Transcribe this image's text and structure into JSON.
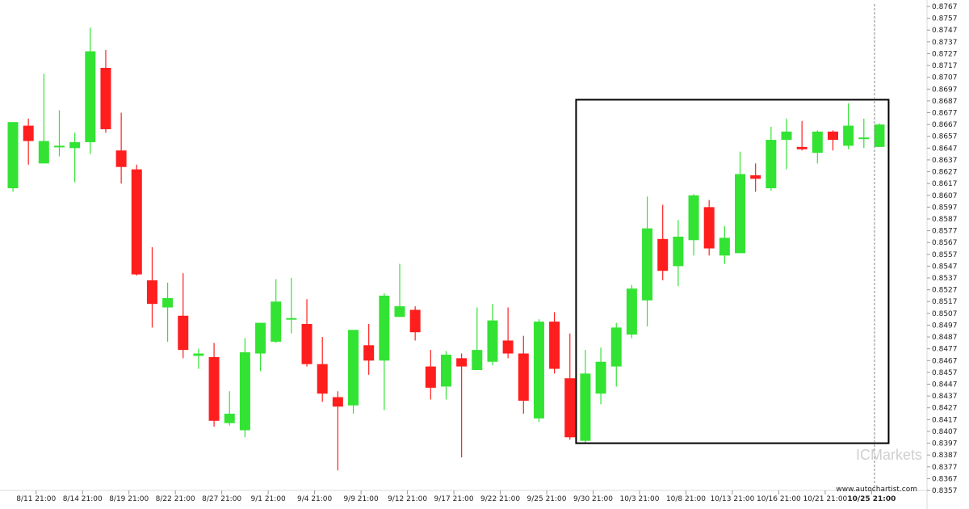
{
  "chart_data": {
    "type": "candlestick",
    "title": "",
    "xlabel": "",
    "ylabel": "",
    "ylim": [
      0.8357,
      0.8767
    ],
    "y_ticks": [
      "0.8767",
      "0.8757",
      "0.8747",
      "0.8737",
      "0.8727",
      "0.8717",
      "0.8707",
      "0.8697",
      "0.8687",
      "0.8677",
      "0.8667",
      "0.8657",
      "0.8647",
      "0.8637",
      "0.8627",
      "0.8617",
      "0.8607",
      "0.8597",
      "0.8587",
      "0.8577",
      "0.8567",
      "0.8557",
      "0.8547",
      "0.8537",
      "0.8527",
      "0.8517",
      "0.8507",
      "0.8497",
      "0.8487",
      "0.8477",
      "0.8467",
      "0.8457",
      "0.8447",
      "0.8437",
      "0.8427",
      "0.8417",
      "0.8407",
      "0.8397",
      "0.8387",
      "0.8377",
      "0.8367",
      "0.8357"
    ],
    "x_ticks": [
      {
        "label": "8/11 21:00",
        "index": 1.5
      },
      {
        "label": "8/14 21:00",
        "index": 4.5
      },
      {
        "label": "8/19 21:00",
        "index": 7.5
      },
      {
        "label": "8/22 21:00",
        "index": 10.5
      },
      {
        "label": "8/27 21:00",
        "index": 13.5
      },
      {
        "label": "9/1 21:00",
        "index": 16.5
      },
      {
        "label": "9/4 21:00",
        "index": 19.5
      },
      {
        "label": "9/9 21:00",
        "index": 22.5
      },
      {
        "label": "9/12 21:00",
        "index": 25.5
      },
      {
        "label": "9/17 21:00",
        "index": 28.5
      },
      {
        "label": "9/22 21:00",
        "index": 31.5
      },
      {
        "label": "9/25 21:00",
        "index": 34.5
      },
      {
        "label": "9/30 21:00",
        "index": 37.5
      },
      {
        "label": "10/3 21:00",
        "index": 40.5
      },
      {
        "label": "10/8 21:00",
        "index": 43.5
      },
      {
        "label": "10/13 21:00",
        "index": 46.5
      },
      {
        "label": "10/16 21:00",
        "index": 49.5
      },
      {
        "label": "10/21 21:00",
        "index": 52.5
      },
      {
        "label": "10/25 21:00",
        "index": 55.5
      }
    ],
    "candles": [
      {
        "o": 0.8613,
        "h": 0.8669,
        "l": 0.861,
        "c": 0.8669
      },
      {
        "o": 0.8666,
        "h": 0.8672,
        "l": 0.8633,
        "c": 0.8653
      },
      {
        "o": 0.8634,
        "h": 0.871,
        "l": 0.8634,
        "c": 0.8653
      },
      {
        "o": 0.8649,
        "h": 0.8679,
        "l": 0.864,
        "c": 0.8649
      },
      {
        "o": 0.8647,
        "h": 0.866,
        "l": 0.8618,
        "c": 0.8652
      },
      {
        "o": 0.8652,
        "h": 0.8749,
        "l": 0.8642,
        "c": 0.8729
      },
      {
        "o": 0.8715,
        "h": 0.873,
        "l": 0.866,
        "c": 0.8663
      },
      {
        "o": 0.8645,
        "h": 0.8677,
        "l": 0.8617,
        "c": 0.8631
      },
      {
        "o": 0.8629,
        "h": 0.8633,
        "l": 0.8539,
        "c": 0.854
      },
      {
        "o": 0.8535,
        "h": 0.8563,
        "l": 0.8495,
        "c": 0.8515
      },
      {
        "o": 0.8512,
        "h": 0.8533,
        "l": 0.8483,
        "c": 0.852
      },
      {
        "o": 0.8505,
        "h": 0.8541,
        "l": 0.8469,
        "c": 0.8476
      },
      {
        "o": 0.8471,
        "h": 0.8477,
        "l": 0.846,
        "c": 0.8473
      },
      {
        "o": 0.847,
        "h": 0.8482,
        "l": 0.8411,
        "c": 0.8416
      },
      {
        "o": 0.8414,
        "h": 0.8441,
        "l": 0.8412,
        "c": 0.8422
      },
      {
        "o": 0.8408,
        "h": 0.8486,
        "l": 0.8402,
        "c": 0.8474
      },
      {
        "o": 0.8473,
        "h": 0.8495,
        "l": 0.8458,
        "c": 0.8499
      },
      {
        "o": 0.8483,
        "h": 0.8536,
        "l": 0.8482,
        "c": 0.8517
      },
      {
        "o": 0.8503,
        "h": 0.8537,
        "l": 0.849,
        "c": 0.8503
      },
      {
        "o": 0.8498,
        "h": 0.8519,
        "l": 0.8462,
        "c": 0.8464
      },
      {
        "o": 0.8464,
        "h": 0.8487,
        "l": 0.8432,
        "c": 0.8439
      },
      {
        "o": 0.8436,
        "h": 0.8441,
        "l": 0.8374,
        "c": 0.8428
      },
      {
        "o": 0.8429,
        "h": 0.8492,
        "l": 0.8422,
        "c": 0.8493
      },
      {
        "o": 0.848,
        "h": 0.8498,
        "l": 0.8455,
        "c": 0.8467
      },
      {
        "o": 0.8467,
        "h": 0.8524,
        "l": 0.8425,
        "c": 0.8522
      },
      {
        "o": 0.8504,
        "h": 0.8549,
        "l": 0.8504,
        "c": 0.8513
      },
      {
        "o": 0.851,
        "h": 0.8513,
        "l": 0.8484,
        "c": 0.8491
      },
      {
        "o": 0.8462,
        "h": 0.8476,
        "l": 0.8434,
        "c": 0.8444
      },
      {
        "o": 0.8445,
        "h": 0.8475,
        "l": 0.8434,
        "c": 0.8472
      },
      {
        "o": 0.8469,
        "h": 0.8473,
        "l": 0.8385,
        "c": 0.8462
      },
      {
        "o": 0.8459,
        "h": 0.8512,
        "l": 0.8459,
        "c": 0.8476
      },
      {
        "o": 0.8466,
        "h": 0.8515,
        "l": 0.8463,
        "c": 0.8501
      },
      {
        "o": 0.8484,
        "h": 0.8512,
        "l": 0.8469,
        "c": 0.8473
      },
      {
        "o": 0.8473,
        "h": 0.8488,
        "l": 0.8422,
        "c": 0.8433
      },
      {
        "o": 0.8418,
        "h": 0.8502,
        "l": 0.8415,
        "c": 0.85
      },
      {
        "o": 0.85,
        "h": 0.8508,
        "l": 0.8456,
        "c": 0.846
      },
      {
        "o": 0.8452,
        "h": 0.849,
        "l": 0.84,
        "c": 0.8402
      },
      {
        "o": 0.8399,
        "h": 0.8476,
        "l": 0.8397,
        "c": 0.8456
      },
      {
        "o": 0.8439,
        "h": 0.8478,
        "l": 0.843,
        "c": 0.8466
      },
      {
        "o": 0.8462,
        "h": 0.8499,
        "l": 0.8445,
        "c": 0.8495
      },
      {
        "o": 0.8489,
        "h": 0.8531,
        "l": 0.8486,
        "c": 0.8528
      },
      {
        "o": 0.8518,
        "h": 0.8606,
        "l": 0.8496,
        "c": 0.8579
      },
      {
        "o": 0.857,
        "h": 0.8599,
        "l": 0.8535,
        "c": 0.8543
      },
      {
        "o": 0.8547,
        "h": 0.8586,
        "l": 0.853,
        "c": 0.8572
      },
      {
        "o": 0.8569,
        "h": 0.8608,
        "l": 0.8556,
        "c": 0.8607
      },
      {
        "o": 0.8597,
        "h": 0.8603,
        "l": 0.8556,
        "c": 0.8562
      },
      {
        "o": 0.8556,
        "h": 0.8581,
        "l": 0.8549,
        "c": 0.8571
      },
      {
        "o": 0.8558,
        "h": 0.8644,
        "l": 0.8558,
        "c": 0.8625
      },
      {
        "o": 0.8624,
        "h": 0.8634,
        "l": 0.861,
        "c": 0.8621
      },
      {
        "o": 0.8613,
        "h": 0.8665,
        "l": 0.8611,
        "c": 0.8654
      },
      {
        "o": 0.8654,
        "h": 0.8672,
        "l": 0.8629,
        "c": 0.8661
      },
      {
        "o": 0.8648,
        "h": 0.867,
        "l": 0.8645,
        "c": 0.8646
      },
      {
        "o": 0.8643,
        "h": 0.8662,
        "l": 0.8634,
        "c": 0.8661
      },
      {
        "o": 0.8661,
        "h": 0.8662,
        "l": 0.8645,
        "c": 0.8654
      },
      {
        "o": 0.8649,
        "h": 0.8685,
        "l": 0.8646,
        "c": 0.8666
      },
      {
        "o": 0.8656,
        "h": 0.8672,
        "l": 0.8647,
        "c": 0.8656
      },
      {
        "o": 0.8648,
        "h": 0.8668,
        "l": 0.8648,
        "c": 0.8667
      }
    ],
    "highlight_box": {
      "start_index": 37,
      "end_index": 56,
      "y_low": 0.8397,
      "y_high": 0.8688
    },
    "last_candle_marker_index": 56,
    "grid": false,
    "colors": {
      "up": "#33e333",
      "down": "#ff1e1e",
      "box": "#000000",
      "watermark": "#cfcfcf"
    }
  },
  "watermark": "ICMarkets",
  "site_label": "www.autochartist.com"
}
